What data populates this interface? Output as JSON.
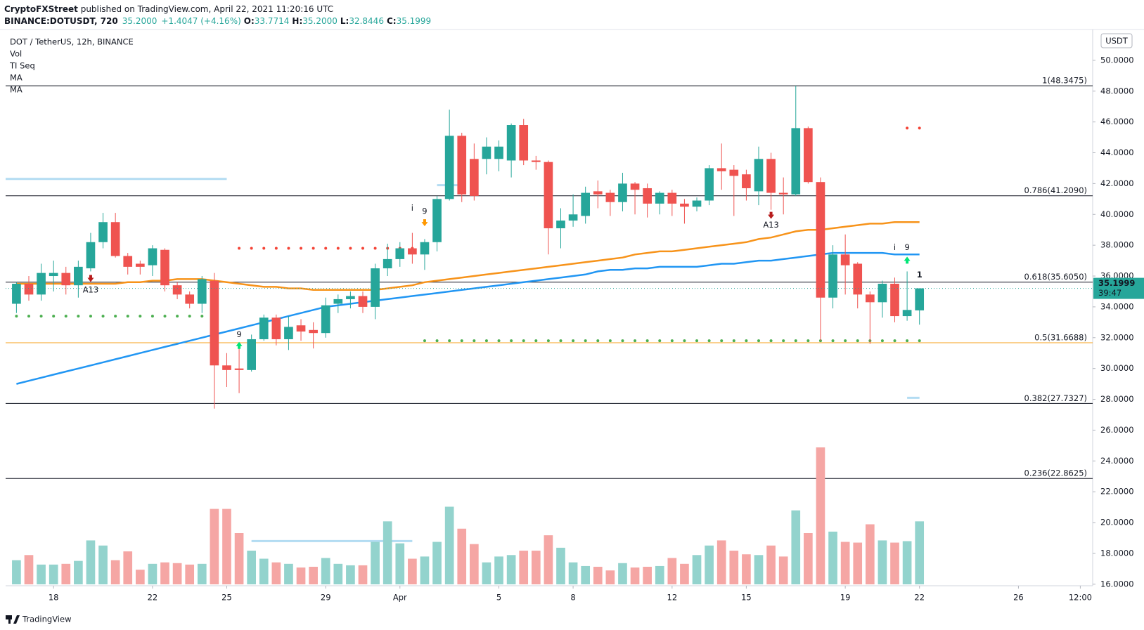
{
  "header": {
    "publisher": "CryptoFXStreet",
    "published": " published on TradingView.com, April 22, 2021 11:20:16 UTC",
    "symbol": "BINANCE:DOTUSDT, 720",
    "last": "35.2000",
    "change": "+1.4047 (+4.16%)",
    "o_label": "O:",
    "o": "33.7714",
    "h_label": "H:",
    "h": "35.2000",
    "l_label": "L:",
    "l": "32.8446",
    "c_label": "C:",
    "c": "35.1999"
  },
  "legend": [
    "DOT / TetherUS, 12h, BINANCE",
    "Vol",
    "TI Seq"
  ],
  "footer": "TradingView",
  "chart_data": {
    "type": "candlestick",
    "currency": "USDT",
    "price_tag": {
      "price": "35.1999",
      "countdown": "39:47"
    },
    "up_color": "#26a69a",
    "down_color": "#ef5350",
    "vol_up_color": "#93d3cd",
    "vol_down_color": "#f5a6a4",
    "xlim": [
      "2021-03-16T01:30",
      "2021-04-29T00:00"
    ],
    "ylim": [
      15.9,
      52.0
    ],
    "yticks": [
      {
        "value": 16,
        "label": "16.0000"
      },
      {
        "value": 18,
        "label": "18.0000"
      },
      {
        "value": 20,
        "label": "20.0000"
      },
      {
        "value": 22,
        "label": "22.0000"
      },
      {
        "value": 24,
        "label": "24.0000"
      },
      {
        "value": 26,
        "label": "26.0000"
      },
      {
        "value": 28,
        "label": "28.0000"
      },
      {
        "value": 30,
        "label": "30.0000"
      },
      {
        "value": 32,
        "label": "32.0000"
      },
      {
        "value": 34,
        "label": "34.0000"
      },
      {
        "value": 36,
        "label": "36.0000"
      },
      {
        "value": 38,
        "label": "38.0000"
      },
      {
        "value": 40,
        "label": "40.0000"
      },
      {
        "value": 42,
        "label": "42.0000"
      },
      {
        "value": 44,
        "label": "44.0000"
      },
      {
        "value": 46,
        "label": "46.0000"
      },
      {
        "value": 48,
        "label": "48.0000"
      },
      {
        "value": 50,
        "label": "50.0000"
      }
    ],
    "xticks": [
      {
        "value": "2021-03-18T00:00",
        "label": "18"
      },
      {
        "value": "2021-03-22T00:00",
        "label": "22"
      },
      {
        "value": "2021-03-25T00:00",
        "label": "25"
      },
      {
        "value": "2021-03-29T00:00",
        "label": "29"
      },
      {
        "value": "2021-04-01T00:00",
        "label": "Apr"
      },
      {
        "value": "2021-04-05T00:00",
        "label": "5"
      },
      {
        "value": "2021-04-08T00:00",
        "label": "8"
      },
      {
        "value": "2021-04-12T00:00",
        "label": "12"
      },
      {
        "value": "2021-04-15T00:00",
        "label": "15"
      },
      {
        "value": "2021-04-19T00:00",
        "label": "19"
      },
      {
        "value": "2021-04-22T00:00",
        "label": "22"
      },
      {
        "value": "2021-04-26T00:00",
        "label": "26"
      },
      {
        "value": "2021-04-28T12:00",
        "label": "12:00"
      }
    ],
    "x": [
      "2021-03-16T12:00",
      "2021-03-17T00:00",
      "2021-03-17T12:00",
      "2021-03-18T00:00",
      "2021-03-18T12:00",
      "2021-03-19T00:00",
      "2021-03-19T12:00",
      "2021-03-20T00:00",
      "2021-03-20T12:00",
      "2021-03-21T00:00",
      "2021-03-21T12:00",
      "2021-03-22T00:00",
      "2021-03-22T12:00",
      "2021-03-23T00:00",
      "2021-03-23T12:00",
      "2021-03-24T00:00",
      "2021-03-24T12:00",
      "2021-03-25T00:00",
      "2021-03-25T12:00",
      "2021-03-26T00:00",
      "2021-03-26T12:00",
      "2021-03-27T00:00",
      "2021-03-27T12:00",
      "2021-03-28T00:00",
      "2021-03-28T12:00",
      "2021-03-29T00:00",
      "2021-03-29T12:00",
      "2021-03-30T00:00",
      "2021-03-30T12:00",
      "2021-03-31T00:00",
      "2021-03-31T12:00",
      "2021-04-01T00:00",
      "2021-04-01T12:00",
      "2021-04-02T00:00",
      "2021-04-02T12:00",
      "2021-04-03T00:00",
      "2021-04-03T12:00",
      "2021-04-04T00:00",
      "2021-04-04T12:00",
      "2021-04-05T00:00",
      "2021-04-05T12:00",
      "2021-04-06T00:00",
      "2021-04-06T12:00",
      "2021-04-07T00:00",
      "2021-04-07T12:00",
      "2021-04-08T00:00",
      "2021-04-08T12:00",
      "2021-04-09T00:00",
      "2021-04-09T12:00",
      "2021-04-10T00:00",
      "2021-04-10T12:00",
      "2021-04-11T00:00",
      "2021-04-11T12:00",
      "2021-04-12T00:00",
      "2021-04-12T12:00",
      "2021-04-13T00:00",
      "2021-04-13T12:00",
      "2021-04-14T00:00",
      "2021-04-14T12:00",
      "2021-04-15T00:00",
      "2021-04-15T12:00",
      "2021-04-16T00:00",
      "2021-04-16T12:00",
      "2021-04-17T00:00",
      "2021-04-17T12:00",
      "2021-04-18T00:00",
      "2021-04-18T12:00",
      "2021-04-19T00:00",
      "2021-04-19T12:00",
      "2021-04-20T00:00",
      "2021-04-20T12:00",
      "2021-04-21T00:00",
      "2021-04-21T12:00",
      "2021-04-22T00:00"
    ],
    "open": [
      34.2,
      35.5,
      34.8,
      36.0,
      36.2,
      35.4,
      36.5,
      38.2,
      39.5,
      37.3,
      36.8,
      36.7,
      37.7,
      35.4,
      34.8,
      34.2,
      35.7,
      30.2,
      30.0,
      29.9,
      31.9,
      33.3,
      31.9,
      32.8,
      32.5,
      32.3,
      34.2,
      34.5,
      34.7,
      34.0,
      36.5,
      37.1,
      37.8,
      37.4,
      38.2,
      41.0,
      45.1,
      43.6,
      43.6,
      43.6,
      43.5,
      45.8,
      43.5,
      43.4,
      39.1,
      39.6,
      39.9,
      41.5,
      41.4,
      40.8,
      42.0,
      41.7,
      40.7,
      41.4,
      40.7,
      40.5,
      40.9,
      43.0,
      42.9,
      42.6,
      41.5,
      43.6,
      41.4,
      41.3,
      45.6,
      42.1,
      34.6,
      37.4,
      36.8,
      34.8,
      34.3,
      35.5,
      33.4,
      33.7714
    ],
    "high": [
      35.6,
      36.0,
      36.8,
      37.0,
      36.6,
      37.0,
      38.8,
      40.1,
      40.1,
      37.5,
      37.0,
      38.0,
      37.8,
      35.6,
      35.0,
      36.0,
      36.2,
      31.0,
      31.7,
      32.2,
      33.5,
      33.5,
      33.4,
      33.2,
      33.0,
      34.6,
      34.8,
      35.0,
      35.0,
      36.8,
      38.1,
      38.2,
      38.8,
      38.4,
      41.2,
      46.8,
      45.3,
      44.6,
      45.0,
      44.8,
      45.9,
      46.2,
      43.8,
      43.5,
      40.4,
      41.3,
      41.8,
      42.2,
      41.6,
      42.7,
      42.1,
      42.0,
      41.5,
      41.6,
      41.0,
      41.1,
      43.2,
      44.6,
      43.2,
      42.9,
      44.4,
      44.0,
      42.4,
      48.3475,
      45.7,
      42.4,
      38.0,
      38.7,
      36.9,
      35.0,
      35.7,
      35.9,
      36.3,
      35.2
    ],
    "low": [
      33.6,
      34.4,
      34.4,
      35.0,
      34.8,
      34.6,
      36.3,
      37.8,
      37.2,
      36.1,
      36.1,
      36.0,
      35.0,
      34.5,
      33.9,
      33.6,
      27.4,
      28.8,
      28.4,
      29.8,
      31.8,
      31.5,
      31.2,
      31.8,
      31.3,
      32.0,
      33.6,
      33.9,
      33.6,
      33.2,
      36.0,
      36.6,
      36.8,
      36.4,
      37.6,
      40.9,
      40.8,
      40.9,
      42.6,
      42.8,
      42.4,
      43.2,
      42.9,
      37.4,
      37.8,
      39.2,
      39.4,
      40.4,
      39.9,
      40.2,
      40.0,
      39.8,
      40.0,
      39.9,
      39.4,
      40.2,
      40.6,
      41.6,
      39.9,
      40.9,
      40.6,
      40.3,
      40.0,
      41.2,
      42.0,
      31.8,
      33.9,
      34.8,
      33.9,
      31.6,
      33.3,
      33.0,
      33.1,
      32.8446
    ],
    "close": [
      35.5,
      34.8,
      36.2,
      36.2,
      35.4,
      36.6,
      38.2,
      39.5,
      37.3,
      36.6,
      36.6,
      37.8,
      35.4,
      34.8,
      34.2,
      35.8,
      30.2,
      29.9,
      29.9,
      31.9,
      33.3,
      31.9,
      32.7,
      32.4,
      32.3,
      34.1,
      34.5,
      34.7,
      34.0,
      36.5,
      37.1,
      37.8,
      37.4,
      38.2,
      41.0,
      45.1,
      41.3,
      41.2,
      44.4,
      44.4,
      45.8,
      43.5,
      43.4,
      39.1,
      39.6,
      40.0,
      41.4,
      41.3,
      40.8,
      42.0,
      41.6,
      40.7,
      41.4,
      40.7,
      40.5,
      40.9,
      43.0,
      42.8,
      42.5,
      41.7,
      43.6,
      41.4,
      41.3,
      45.6,
      42.1,
      34.6,
      37.4,
      36.7,
      34.8,
      34.3,
      35.5,
      33.4,
      33.8,
      35.1999
    ],
    "volume": [
      33,
      40,
      27,
      27,
      28,
      32,
      60,
      53,
      33,
      45,
      20,
      28,
      30,
      29,
      27,
      28,
      103,
      103,
      70,
      46,
      35,
      30,
      28,
      23,
      24,
      36,
      28,
      26,
      26,
      58,
      86,
      56,
      35,
      38,
      58,
      106,
      76,
      55,
      30,
      38,
      40,
      46,
      46,
      67,
      50,
      30,
      25,
      24,
      19,
      29,
      23,
      24,
      25,
      36,
      28,
      40,
      53,
      60,
      46,
      41,
      40,
      53,
      38,
      101,
      70,
      187,
      72,
      58,
      57,
      82,
      60,
      57,
      59,
      86
    ],
    "ma": [
      {
        "name": "MA",
        "color": "#f7931a",
        "values": [
          35.5,
          35.5,
          35.5,
          35.5,
          35.5,
          35.5,
          35.5,
          35.5,
          35.5,
          35.6,
          35.6,
          35.7,
          35.7,
          35.8,
          35.8,
          35.8,
          35.7,
          35.6,
          35.5,
          35.4,
          35.3,
          35.3,
          35.2,
          35.2,
          35.1,
          35.1,
          35.1,
          35.1,
          35.1,
          35.1,
          35.2,
          35.3,
          35.4,
          35.6,
          35.7,
          35.8,
          35.9,
          36.0,
          36.1,
          36.2,
          36.3,
          36.4,
          36.5,
          36.6,
          36.7,
          36.8,
          36.9,
          37.0,
          37.1,
          37.2,
          37.4,
          37.5,
          37.6,
          37.6,
          37.7,
          37.8,
          37.9,
          38.0,
          38.1,
          38.2,
          38.4,
          38.5,
          38.7,
          38.9,
          39.0,
          39.0,
          39.1,
          39.2,
          39.3,
          39.4,
          39.4,
          39.5,
          39.5,
          39.5
        ]
      },
      {
        "name": "MA",
        "color": "#2196f3",
        "values": [
          29.0,
          29.2,
          29.4,
          29.6,
          29.8,
          30.0,
          30.2,
          30.4,
          30.6,
          30.8,
          31.0,
          31.2,
          31.4,
          31.6,
          31.8,
          32.0,
          32.2,
          32.4,
          32.6,
          32.8,
          33.0,
          33.2,
          33.4,
          33.6,
          33.8,
          34.0,
          34.1,
          34.2,
          34.3,
          34.4,
          34.5,
          34.6,
          34.7,
          34.8,
          34.9,
          35.0,
          35.1,
          35.2,
          35.3,
          35.4,
          35.5,
          35.6,
          35.7,
          35.8,
          35.9,
          36.0,
          36.1,
          36.3,
          36.4,
          36.4,
          36.5,
          36.5,
          36.6,
          36.6,
          36.6,
          36.6,
          36.7,
          36.8,
          36.8,
          36.9,
          37.0,
          37.0,
          37.1,
          37.2,
          37.3,
          37.4,
          37.5,
          37.5,
          37.5,
          37.5,
          37.5,
          37.4,
          37.4,
          37.4
        ]
      }
    ],
    "fib": [
      {
        "level": 48.3475,
        "label": "1(48.3475)",
        "color": "#131722"
      },
      {
        "level": 41.209,
        "label": "0.786(41.2090)",
        "color": "#131722"
      },
      {
        "level": 35.605,
        "label": "0.618(35.6050)",
        "color": "#131722"
      },
      {
        "level": 31.6688,
        "label": "0.5(31.6688)",
        "color": "#f7a21b"
      },
      {
        "level": 27.7327,
        "label": "0.382(27.7327)",
        "color": "#131722"
      },
      {
        "level": 22.8625,
        "label": "0.236(22.8625)",
        "color": "#131722"
      }
    ],
    "lines": [
      {
        "price": 42.3,
        "from": "2021-03-16T01:30",
        "to": "2021-03-25T00:00",
        "color": "#b3dcf2",
        "style": "solid"
      },
      {
        "price": 41.9,
        "from": "2021-04-02T12:00",
        "to": "2021-04-03T12:00",
        "color": "#b3dcf2",
        "style": "solid"
      },
      {
        "price": 28.1,
        "from": "2021-04-21T12:00",
        "to": "2021-04-22T00:00",
        "color": "#b3dcf2",
        "style": "solid"
      },
      {
        "price": 18.8,
        "from": "2021-03-26T00:00",
        "to": "2021-04-01T12:00",
        "color": "#b3dcf2",
        "style": "solid"
      },
      {
        "price": 33.4,
        "from": "2021-03-16T12:00",
        "to": "2021-03-24T00:00",
        "color": "#4caf50",
        "style": "dots"
      },
      {
        "price": 37.8,
        "from": "2021-03-25T12:00",
        "to": "2021-04-01T12:00",
        "color": "#f44336",
        "style": "dots"
      },
      {
        "price": 31.8,
        "from": "2021-04-02T00:00",
        "to": "2021-04-22T00:00",
        "color": "#4caf50",
        "style": "dots"
      },
      {
        "price": 45.6,
        "from": "2021-04-21T12:00",
        "to": "2021-04-22T00:00",
        "color": "#f44336",
        "style": "dots"
      }
    ],
    "annotations": [
      {
        "text": "A13",
        "x": "2021-03-19T12:00",
        "price": 35.1,
        "color": "#2196f3"
      },
      {
        "text": "A13",
        "x": "2021-04-16T00:00",
        "price": 39.3,
        "color": "#2196f3"
      },
      {
        "text": "9",
        "x": "2021-04-02T00:00",
        "price": 40.2,
        "color": "#4caf50"
      },
      {
        "text": "i",
        "x": "2021-04-01T12:00",
        "price": 40.4,
        "color": "#ff9800"
      },
      {
        "text": "9",
        "x": "2021-03-25T12:00",
        "price": 32.2,
        "color": "#f44336"
      },
      {
        "text": "9",
        "x": "2021-04-21T12:00",
        "price": 37.84,
        "color": "#f44336"
      },
      {
        "text": "i",
        "x": "2021-04-21T00:00",
        "price": 37.84,
        "color": "#ff9800"
      },
      {
        "text": "1",
        "x": "2021-04-22T00:00",
        "price": 36.07,
        "color": "#4caf50"
      }
    ],
    "arrows": [
      {
        "x": "2021-03-19T12:00",
        "price": 35.84,
        "dir": "down",
        "color": "#b71c1c"
      },
      {
        "x": "2021-04-16T00:00",
        "price": 39.94,
        "dir": "down",
        "color": "#b71c1c"
      },
      {
        "x": "2021-04-02T00:00",
        "price": 39.46,
        "dir": "down",
        "color": "#ff9800"
      },
      {
        "x": "2021-03-25T12:00",
        "price": 31.5,
        "dir": "up",
        "color": "#00e676"
      },
      {
        "x": "2021-04-21T12:00",
        "price": 37.03,
        "dir": "up",
        "color": "#00e676"
      }
    ]
  }
}
